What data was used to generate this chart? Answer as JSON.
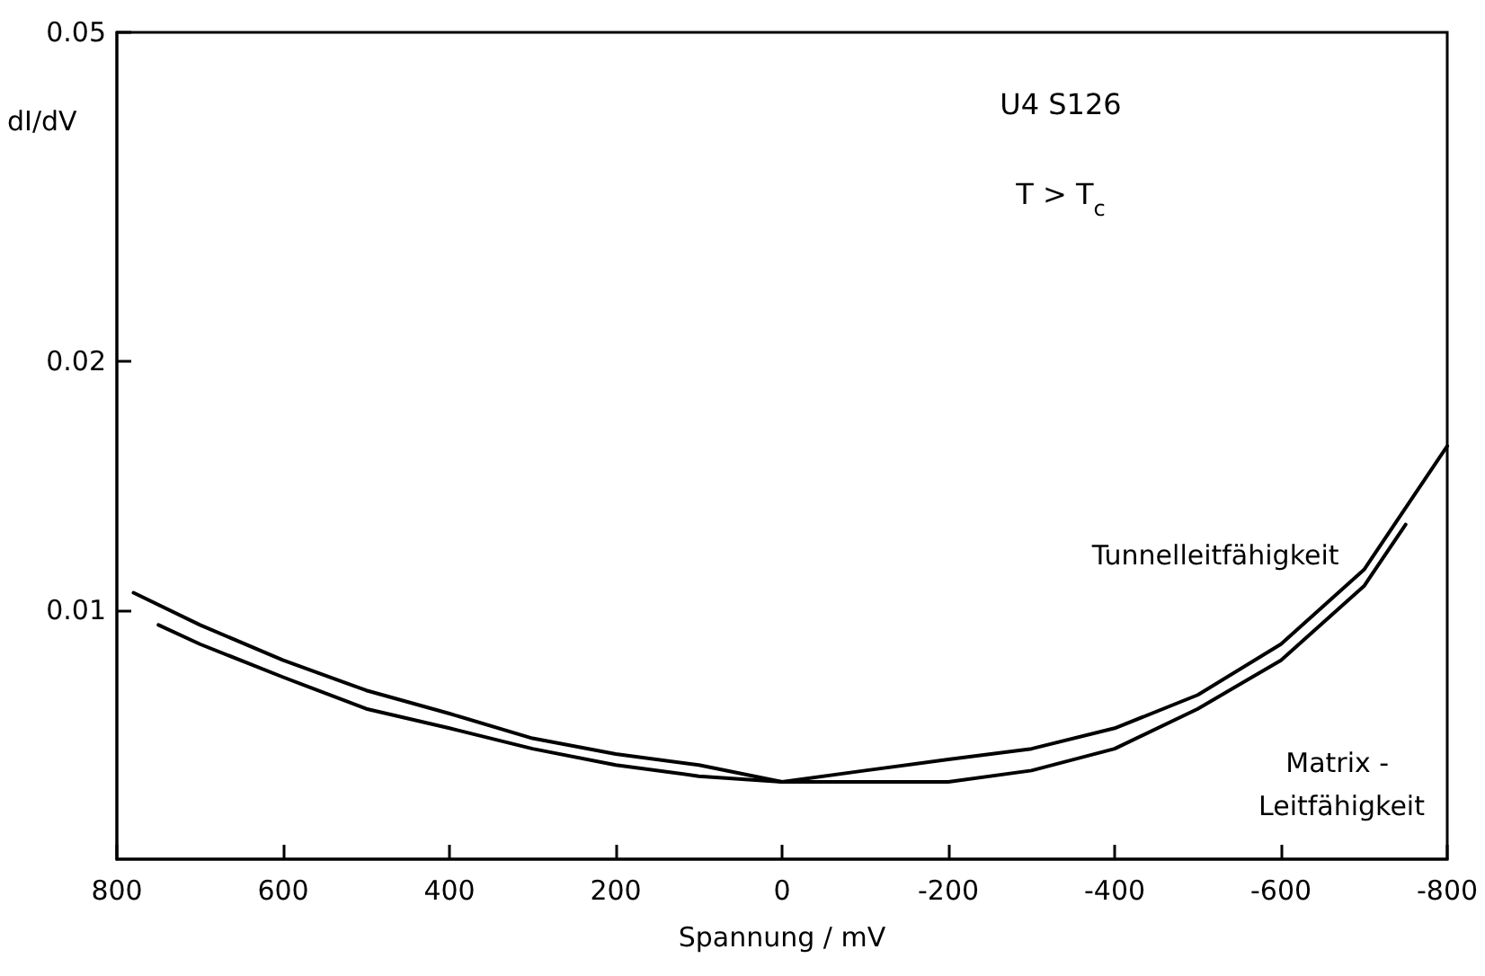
{
  "chart_data": {
    "type": "line",
    "xlabel": "Spannung / mV",
    "ylabel": "dI/dV",
    "annotations": [
      "U4 S126",
      "T > T$_{c}$"
    ],
    "x": [
      780,
      700,
      600,
      500,
      400,
      300,
      200,
      100,
      0,
      -100,
      -200,
      -300,
      -400,
      -500,
      -600,
      -700,
      -800
    ],
    "series": [
      {
        "name": "Tunnelleitfähigkeit",
        "color": "#000000",
        "values": [
          0.0105,
          0.0096,
          0.0087,
          0.008,
          0.0075,
          0.007,
          0.0067,
          0.0065,
          0.0062,
          0.0064,
          0.0066,
          0.0068,
          0.0072,
          0.0079,
          0.0091,
          0.0112,
          0.0158
        ]
      },
      {
        "name": "Matrix - Leitfähigkeit",
        "color": "#000000",
        "x": [
          750,
          700,
          600,
          500,
          400,
          300,
          200,
          100,
          0,
          -100,
          -200,
          -300,
          -400,
          -500,
          -600,
          -700,
          -750
        ],
        "values": [
          0.0096,
          0.0091,
          0.0083,
          0.0076,
          0.0072,
          0.0068,
          0.0065,
          0.0063,
          0.0062,
          0.0062,
          0.0062,
          0.0064,
          0.0068,
          0.0076,
          0.0087,
          0.0107,
          0.0127
        ]
      }
    ],
    "xlim": [
      800,
      -800
    ],
    "xticks": [
      800,
      600,
      400,
      200,
      0,
      -200,
      -400,
      -600,
      -800
    ],
    "ylim": [
      0.005,
      0.05
    ],
    "yticks": [
      0.01,
      0.02,
      0.05
    ],
    "log": "y",
    "grid": false,
    "legend": false,
    "marker": "none",
    "line_style": "solid"
  }
}
